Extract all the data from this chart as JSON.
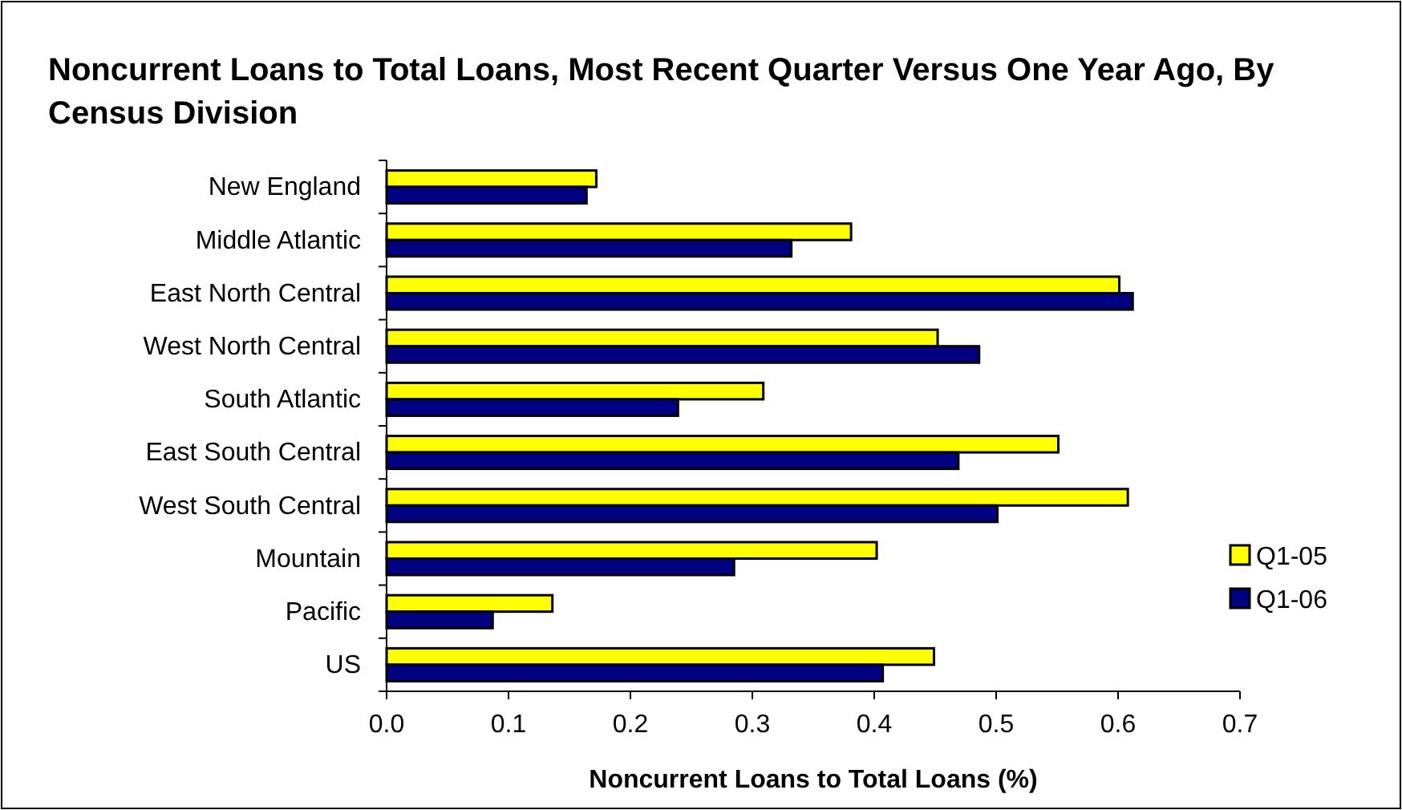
{
  "chart_data": {
    "type": "bar",
    "orientation": "horizontal",
    "title": "Noncurrent Loans to Total Loans, Most Recent Quarter Versus One Year Ago, By Census Division",
    "xlabel": "Noncurrent Loans to Total Loans (%)",
    "categories": [
      "New England",
      "Middle Atlantic",
      "East North Central",
      "West North Central",
      "South Atlantic",
      "East South Central",
      "West South Central",
      "Mountain",
      "Pacific",
      "US"
    ],
    "series": [
      {
        "name": "Q1-05",
        "color": "#ffff00",
        "values": [
          0.172,
          0.381,
          0.601,
          0.452,
          0.309,
          0.551,
          0.608,
          0.402,
          0.136,
          0.449
        ]
      },
      {
        "name": "Q1-06",
        "color": "#000080",
        "values": [
          0.164,
          0.332,
          0.612,
          0.486,
          0.239,
          0.469,
          0.501,
          0.285,
          0.087,
          0.407
        ]
      }
    ],
    "xlim": [
      0,
      0.7
    ],
    "xticks": [
      {
        "value": 0,
        "label": "0.0"
      },
      0.1,
      0.2,
      0.3,
      0.4,
      0.5,
      0.6,
      0.7
    ],
    "legend": "right",
    "grid": false
  }
}
